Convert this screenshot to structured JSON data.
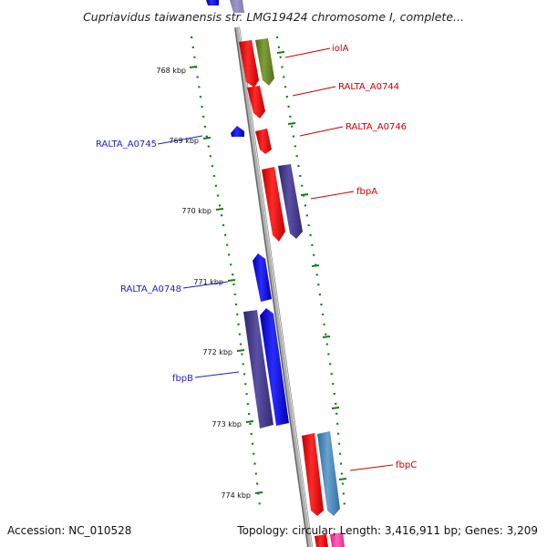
{
  "header": {
    "title": "Cupriavidus taiwanensis str. LMG19424 chromosome I, complete..."
  },
  "footer": {
    "accession": "Accession: NC_010528",
    "summary": "Topology: circular; Length: 3,416,911 bp; Genes: 3,209"
  },
  "ruler": {
    "ticks": [
      "768 kbp",
      "769 kbp",
      "770 kbp",
      "771 kbp",
      "772 kbp",
      "773 kbp",
      "774 kbp"
    ]
  },
  "genes": {
    "right": [
      {
        "label": "iolA",
        "color": "#cc0000"
      },
      {
        "label": "RALTA_A0744",
        "color": "#cc0000"
      },
      {
        "label": "RALTA_A0746",
        "color": "#cc0000"
      },
      {
        "label": "fbpA",
        "color": "#cc0000"
      },
      {
        "label": "fbpC",
        "color": "#cc0000"
      }
    ],
    "left": [
      {
        "label": "RALTA_A0745",
        "color": "#1f1fbf"
      },
      {
        "label": "RALTA_A0748",
        "color": "#1f1fbf"
      },
      {
        "label": "fbpB",
        "color": "#1f1fbf"
      }
    ]
  },
  "colors": {
    "red": "#ff1010",
    "blue": "#1010ee",
    "purple": "#4a3f8f",
    "olive": "#6e8b2a",
    "steel": "#4f88b8",
    "pink": "#ff3fa0",
    "ruler_green": "#1a7a1a",
    "backbone": "#8a8a8a"
  }
}
